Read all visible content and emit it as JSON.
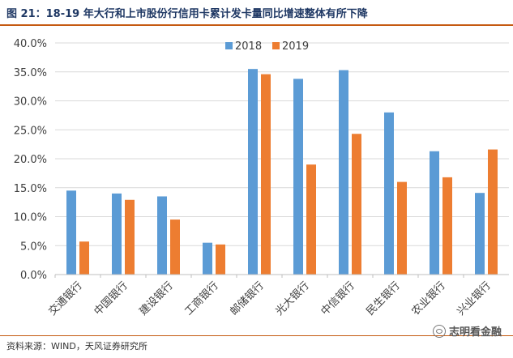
{
  "figure_title": "图 21：18-19 年大行和上市股份行信用卡累计发卡量同比增速整体有所下降",
  "source_note": "资料来源：WIND，天风证券研究所",
  "watermark_text": "志明看金融",
  "colors": {
    "series_2018": "#5b9bd5",
    "series_2019": "#ed7d31",
    "title_text": "#1f3864",
    "rule": "#c55a11",
    "grid": "#d9d9d9"
  },
  "chart_data": {
    "type": "bar",
    "title": "",
    "xlabel": "",
    "ylabel": "",
    "ylim": [
      0,
      40
    ],
    "y_ticks": [
      "0.0%",
      "5.0%",
      "10.0%",
      "15.0%",
      "20.0%",
      "25.0%",
      "30.0%",
      "35.0%",
      "40.0%"
    ],
    "y_tick_values": [
      0,
      5,
      10,
      15,
      20,
      25,
      30,
      35,
      40
    ],
    "grid": true,
    "legend_position": "top-center",
    "categories": [
      "交通银行",
      "中国银行",
      "建设银行",
      "工商银行",
      "邮储银行",
      "光大银行",
      "中信银行",
      "民生银行",
      "农业银行",
      "兴业银行"
    ],
    "series": [
      {
        "name": "2018",
        "values": [
          14.5,
          14.0,
          13.5,
          5.5,
          35.5,
          33.8,
          35.3,
          28.0,
          21.3,
          14.1
        ]
      },
      {
        "name": "2019",
        "values": [
          5.7,
          12.9,
          9.5,
          5.2,
          34.6,
          19.0,
          24.3,
          16.0,
          16.8,
          21.6
        ]
      }
    ]
  }
}
